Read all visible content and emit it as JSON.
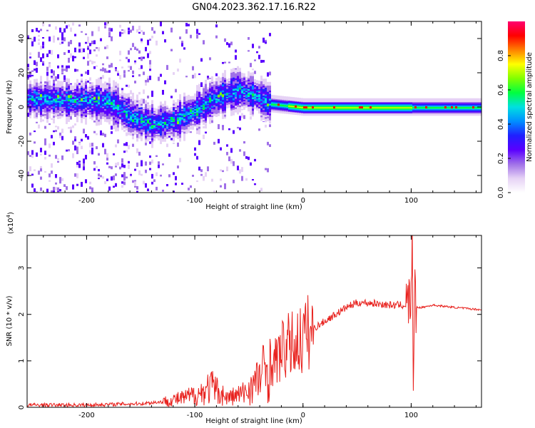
{
  "title": "GN04.2023.362.17.16.R22",
  "chart_data": [
    {
      "type": "heatmap",
      "name": "spectrogram",
      "xlabel": "Height of straight line (km)",
      "ylabel": "Frequency (Hz)",
      "xlim": [
        -255,
        165
      ],
      "ylim": [
        -50,
        50
      ],
      "xticks": [
        -200,
        -100,
        0,
        100
      ],
      "xtick_labels": [
        "-200",
        "-100",
        "0",
        "100"
      ],
      "yticks": [
        -40,
        -20,
        0,
        20,
        40
      ],
      "ytick_labels": [
        "-40",
        "-20",
        "0",
        "20",
        "40"
      ],
      "colorbar": {
        "label": "Normalized spectral amplitude",
        "range": [
          0,
          1
        ],
        "ticks": [
          0.0,
          0.2,
          0.4,
          0.6,
          0.8
        ],
        "tick_labels": [
          "0.0",
          "0.2",
          "0.4",
          "0.6",
          "0.8"
        ],
        "colors": [
          "#ffffff",
          "#e6d2f5",
          "#a070e8",
          "#5a00ff",
          "#2020ff",
          "#0090ff",
          "#00e0e0",
          "#00ff40",
          "#80ff00",
          "#ffff00",
          "#ff8000",
          "#ff0000",
          "#ff0070"
        ]
      },
      "ridge": {
        "x": [
          -255,
          -220,
          -180,
          -160,
          -140,
          -120,
          -100,
          -80,
          -60,
          -45,
          -30,
          -15,
          0,
          50,
          100,
          165
        ],
        "center_hz": [
          5,
          4,
          3,
          -5,
          -10,
          -8,
          -2,
          6,
          10,
          7,
          2,
          1,
          0,
          0,
          0,
          0
        ]
      }
    },
    {
      "type": "line",
      "name": "snr",
      "xlabel": "Height of straight line (km)",
      "ylabel": "SNR (10 * v/v)",
      "multiplier_label": "(x10",
      "multiplier_exp": "4",
      "xlim": [
        -255,
        165
      ],
      "ylim": [
        0,
        3.7
      ],
      "xticks": [
        -200,
        -100,
        0,
        100
      ],
      "xtick_labels": [
        "-200",
        "-100",
        "0",
        "100"
      ],
      "yticks": [
        0,
        1,
        2,
        3
      ],
      "ytick_labels": [
        "0",
        "1",
        "2",
        "3"
      ],
      "color": "#e8211d",
      "envelope": {
        "x": [
          -255,
          -200,
          -150,
          -130,
          -110,
          -95,
          -85,
          -70,
          -55,
          -45,
          -35,
          -25,
          -20,
          -15,
          -10,
          -5,
          0,
          10,
          20,
          30,
          40,
          50,
          60,
          80,
          95,
          100,
          101,
          102,
          103,
          104,
          110,
          120,
          140,
          165
        ],
        "y": [
          0.05,
          0.05,
          0.08,
          0.12,
          0.2,
          0.3,
          0.45,
          0.2,
          0.3,
          0.5,
          0.8,
          1.0,
          1.2,
          1.3,
          1.35,
          1.4,
          1.5,
          1.7,
          1.85,
          2.0,
          2.15,
          2.25,
          2.25,
          2.2,
          2.2,
          2.3,
          3.6,
          0.6,
          2.6,
          2.15,
          2.15,
          2.2,
          2.15,
          2.1
        ]
      }
    }
  ]
}
